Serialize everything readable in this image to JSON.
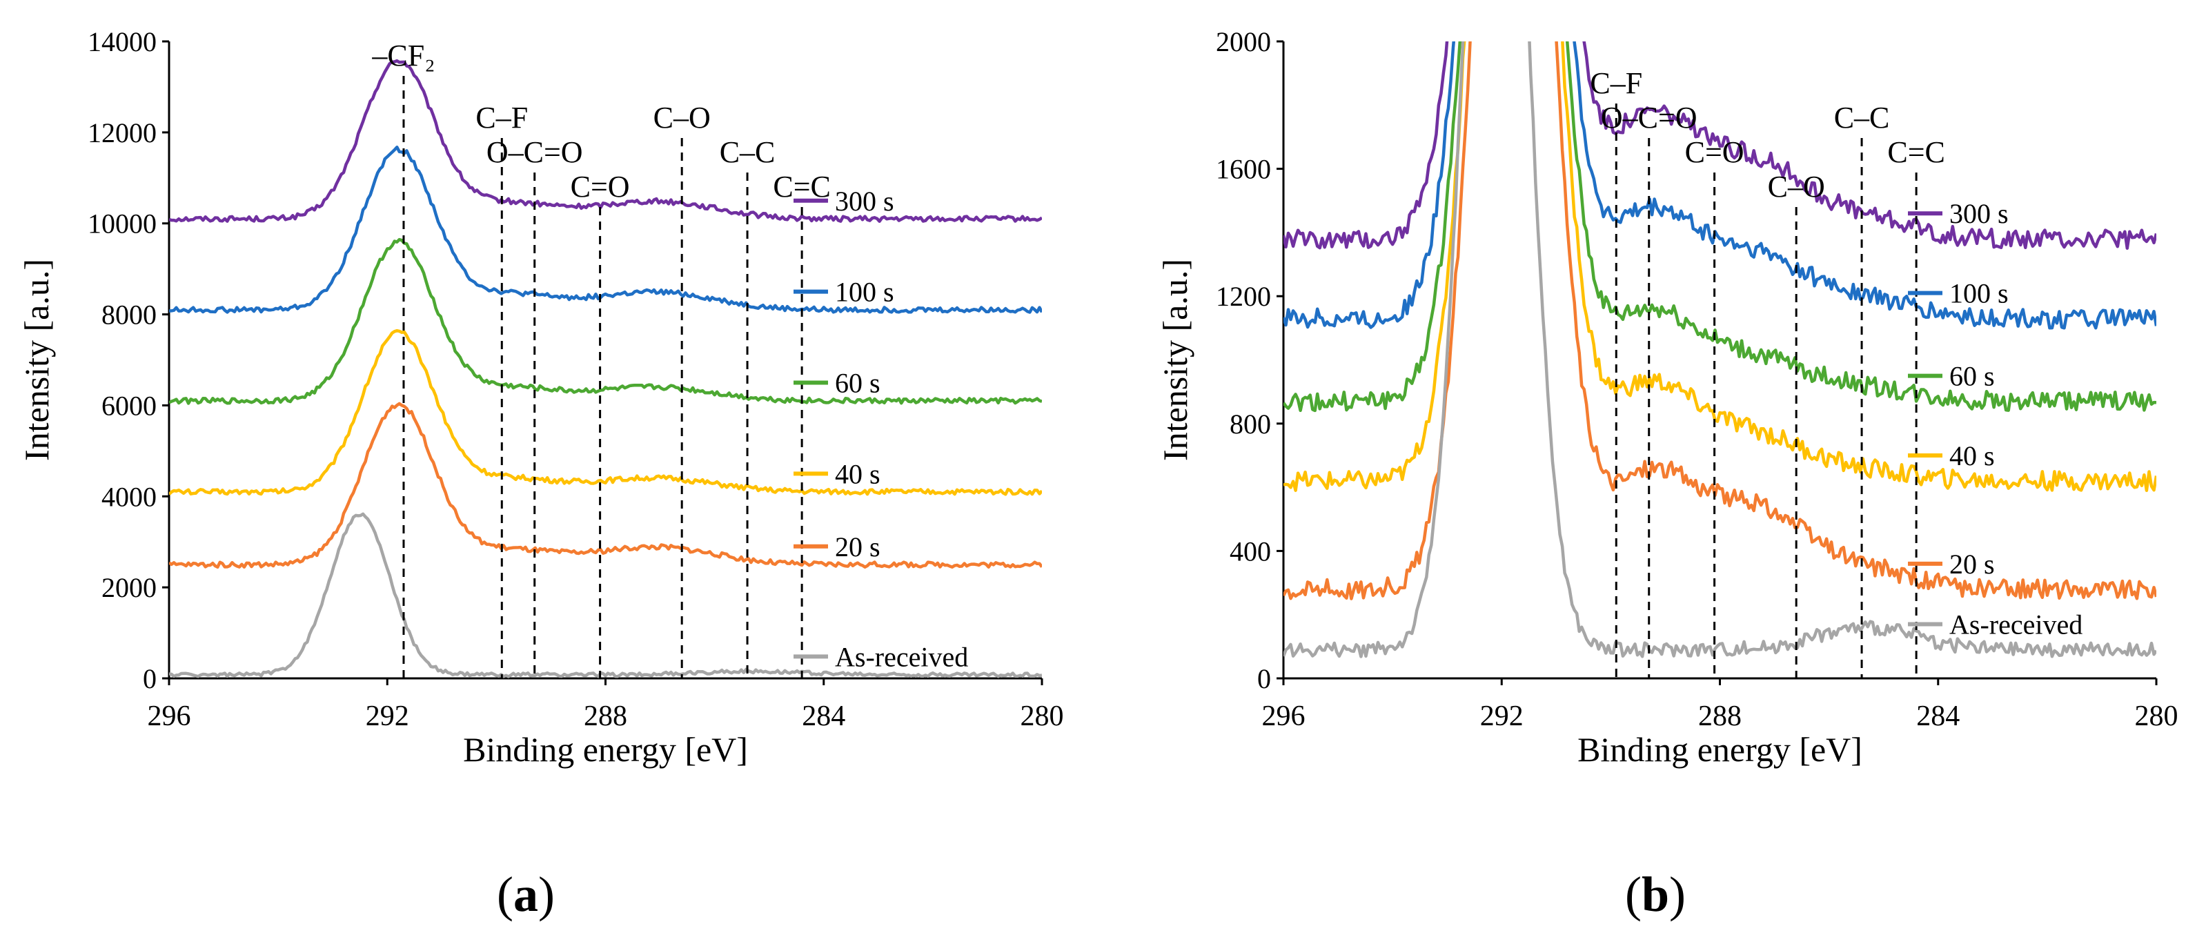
{
  "chart_data": [
    {
      "panel": "a",
      "type": "line",
      "xlabel": "Binding energy  [eV]",
      "ylabel": "Intensity [a.u.]",
      "xlim": [
        296,
        280
      ],
      "ylim": [
        0,
        14000
      ],
      "xticks": [
        296,
        292,
        288,
        284,
        280
      ],
      "yticks": [
        0,
        2000,
        4000,
        6000,
        8000,
        10000,
        12000,
        14000
      ],
      "grid": false,
      "legend_position": "right, beside each curve",
      "peak_lines": [
        {
          "label": "–CF₂",
          "x": 291.7
        },
        {
          "label": "C–F",
          "x": 289.9
        },
        {
          "label": "O–C=O",
          "x": 289.3
        },
        {
          "label": "C=O",
          "x": 288.1
        },
        {
          "label": "C–O",
          "x": 286.6
        },
        {
          "label": "C–C",
          "x": 285.4
        },
        {
          "label": "C=C",
          "x": 284.4
        }
      ],
      "series": [
        {
          "name": "300 s",
          "color": "#7030a0",
          "baseline": 10100,
          "peak_x": 291.8,
          "peak_height": 3450,
          "width": 0.65,
          "shoulders": [
            [
              289.8,
              350
            ],
            [
              287.5,
              250
            ],
            [
              286.5,
              200
            ]
          ],
          "noise": 55
        },
        {
          "name": "100 s",
          "color": "#1f6fc5",
          "baseline": 8100,
          "peak_x": 291.8,
          "peak_height": 3500,
          "width": 0.65,
          "shoulders": [
            [
              289.8,
              350
            ],
            [
              287.5,
              250
            ],
            [
              286.5,
              200
            ]
          ],
          "noise": 55
        },
        {
          "name": "60 s",
          "color": "#4ca832",
          "baseline": 6100,
          "peak_x": 291.8,
          "peak_height": 3480,
          "width": 0.65,
          "shoulders": [
            [
              289.8,
              300
            ],
            [
              287.5,
              200
            ],
            [
              286.5,
              150
            ]
          ],
          "noise": 55
        },
        {
          "name": "40 s",
          "color": "#ffc000",
          "baseline": 4100,
          "peak_x": 291.8,
          "peak_height": 3480,
          "width": 0.65,
          "shoulders": [
            [
              289.8,
              300
            ],
            [
              287.5,
              200
            ],
            [
              286.5,
              150
            ]
          ],
          "noise": 55
        },
        {
          "name": "20 s",
          "color": "#f47c30",
          "baseline": 2500,
          "peak_x": 291.8,
          "peak_height": 3500,
          "width": 0.65,
          "shoulders": [
            [
              289.8,
              330
            ],
            [
              287.5,
              250
            ],
            [
              286.5,
              200
            ]
          ],
          "noise": 55
        },
        {
          "name": "As-received",
          "color": "#a6a6a6",
          "baseline": 80,
          "peak_x": 292.5,
          "peak_height": 3520,
          "width": 0.55,
          "shoulders": [
            [
              285.3,
              80
            ]
          ],
          "noise": 40
        }
      ]
    },
    {
      "panel": "b",
      "type": "line",
      "xlabel": "Binding energy  [eV]",
      "ylabel": "Intensity [a.u.]",
      "xlim": [
        296,
        280
      ],
      "ylim": [
        0,
        2000
      ],
      "xticks": [
        296,
        292,
        288,
        284,
        280
      ],
      "yticks": [
        0,
        400,
        800,
        1200,
        1600,
        2000
      ],
      "grid": false,
      "legend_position": "right, beside each curve",
      "peak_lines": [
        {
          "label": "C–F",
          "x": 289.9
        },
        {
          "label": "O–C=O",
          "x": 289.3
        },
        {
          "label": "C=O",
          "x": 288.1
        },
        {
          "label": "C–O",
          "x": 286.6
        },
        {
          "label": "C–C",
          "x": 285.4
        },
        {
          "label": "C=C",
          "x": 284.4
        }
      ],
      "series": [
        {
          "name": "300 s",
          "color": "#7030a0",
          "baseline": 1380,
          "peak_x": 291.8,
          "peak_height": 3450,
          "width": 0.65,
          "shoulders": [
            [
              289.3,
              380
            ],
            [
              287.3,
              220
            ],
            [
              285.4,
              60
            ]
          ],
          "noise": 30
        },
        {
          "name": "100 s",
          "color": "#1f6fc5",
          "baseline": 1130,
          "peak_x": 291.8,
          "peak_height": 3500,
          "width": 0.65,
          "shoulders": [
            [
              289.3,
              330
            ],
            [
              287.3,
              180
            ],
            [
              285.4,
              60
            ]
          ],
          "noise": 30
        },
        {
          "name": "60 s",
          "color": "#4ca832",
          "baseline": 870,
          "peak_x": 291.8,
          "peak_height": 3480,
          "width": 0.65,
          "shoulders": [
            [
              289.3,
              280
            ],
            [
              287.3,
              120
            ],
            [
              285.4,
              40
            ]
          ],
          "noise": 30
        },
        {
          "name": "40 s",
          "color": "#ffc000",
          "baseline": 620,
          "peak_x": 291.8,
          "peak_height": 3480,
          "width": 0.65,
          "shoulders": [
            [
              289.3,
              300
            ],
            [
              287.3,
              130
            ],
            [
              285.4,
              30
            ]
          ],
          "noise": 30
        },
        {
          "name": "20 s",
          "color": "#f47c30",
          "baseline": 280,
          "peak_x": 291.8,
          "peak_height": 3500,
          "width": 0.65,
          "shoulders": [
            [
              289.3,
              360
            ],
            [
              287.3,
              230
            ],
            [
              285.4,
              60
            ]
          ],
          "noise": 30
        },
        {
          "name": "As-received",
          "color": "#a6a6a6",
          "baseline": 90,
          "peak_x": 292.1,
          "peak_height": 3520,
          "width": 0.55,
          "shoulders": [
            [
              285.3,
              70
            ]
          ],
          "noise": 22
        }
      ]
    }
  ],
  "panel_labels": {
    "a": "a",
    "b": "b"
  }
}
